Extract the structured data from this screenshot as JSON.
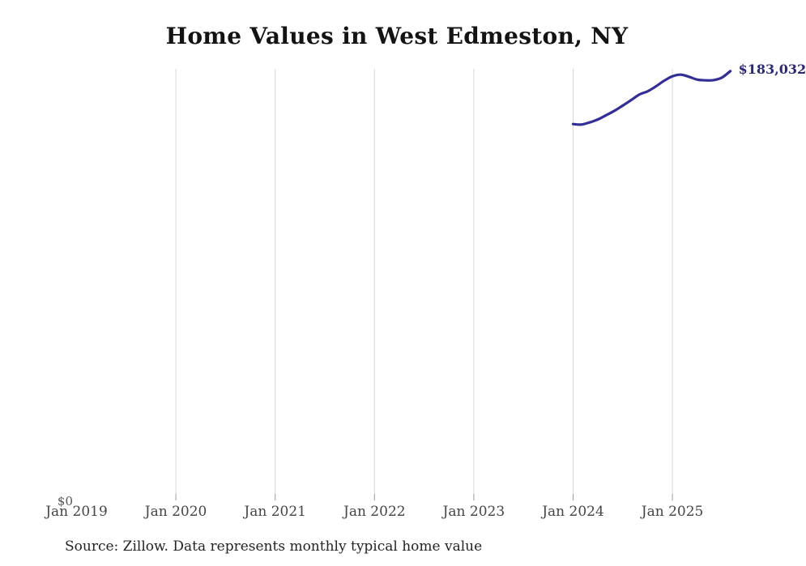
{
  "page": {
    "title": "Home Values in West Edmeston, NY",
    "source_note": "Source: Zillow. Data represents monthly typical home value"
  },
  "chart_data": {
    "type": "line",
    "title": "Home Values in West Edmeston, NY",
    "x_ticks": [
      {
        "label": "Jan 2019",
        "gridline": false
      },
      {
        "label": "Jan 2020",
        "gridline": true
      },
      {
        "label": "Jan 2021",
        "gridline": true
      },
      {
        "label": "Jan 2022",
        "gridline": true
      },
      {
        "label": "Jan 2023",
        "gridline": true
      },
      {
        "label": "Jan 2024",
        "gridline": true
      },
      {
        "label": "Jan 2025",
        "gridline": true
      }
    ],
    "y_tick_labels": [
      "$0"
    ],
    "ylim": [
      0,
      184000
    ],
    "grid": "vertical-only",
    "legend": "none",
    "end_label": "$183,032",
    "colors": {
      "line": "#322e96",
      "end_label": "#2a2877",
      "gridline": "#d7d7d7",
      "tick": "#9c9c9c"
    },
    "series": [
      {
        "name": "Monthly typical home value",
        "x": [
          "2024-01",
          "2024-02",
          "2024-03",
          "2024-04",
          "2024-05",
          "2024-06",
          "2024-07",
          "2024-08",
          "2024-09",
          "2024-10",
          "2024-11",
          "2024-12",
          "2025-01",
          "2025-02",
          "2025-03",
          "2025-04",
          "2025-05",
          "2025-06",
          "2025-07",
          "2025-08"
        ],
        "values": [
          160400,
          160200,
          161100,
          162400,
          164200,
          166100,
          168300,
          170600,
          173000,
          174400,
          176500,
          178900,
          180800,
          181500,
          180600,
          179400,
          179100,
          179200,
          180300,
          183032
        ]
      }
    ]
  }
}
